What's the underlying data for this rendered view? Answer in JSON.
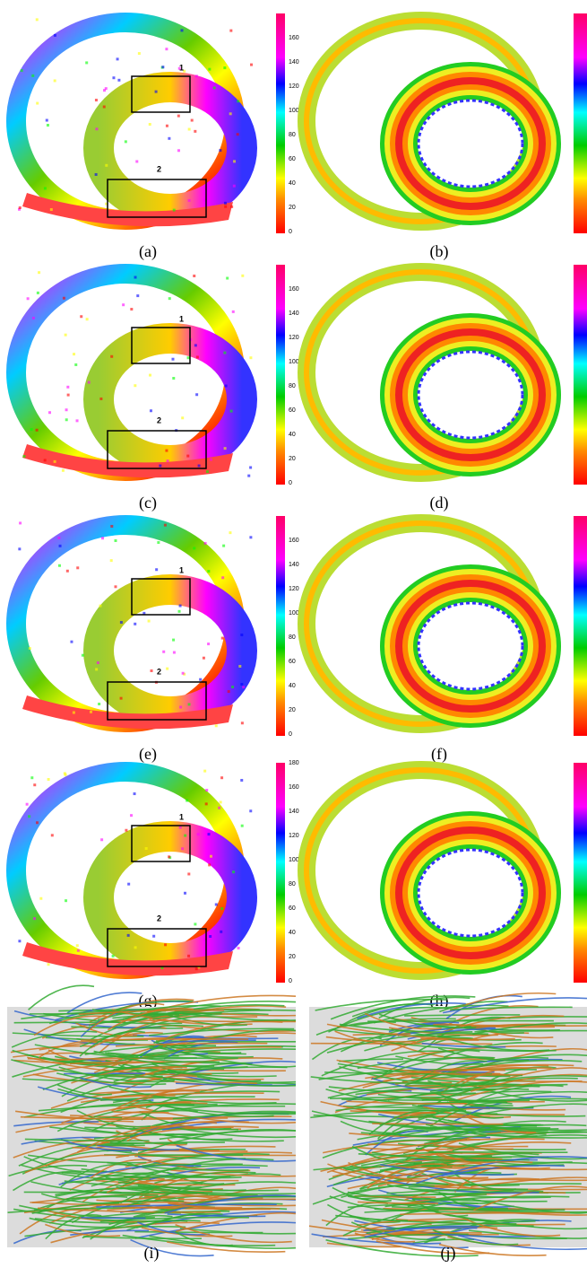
{
  "panels": [
    {
      "label": "(a)",
      "colorbar_ticks": [
        0,
        20,
        40,
        60,
        80,
        100,
        120,
        140,
        160
      ],
      "boxes": [
        "1",
        "2"
      ]
    },
    {
      "label": "(b)"
    },
    {
      "label": "(c)",
      "colorbar_ticks": [
        0,
        20,
        40,
        60,
        80,
        100,
        120,
        140,
        160
      ],
      "boxes": [
        "1",
        "2"
      ]
    },
    {
      "label": "(d)"
    },
    {
      "label": "(e)",
      "colorbar_ticks": [
        0,
        20,
        40,
        60,
        80,
        100,
        120,
        140,
        160
      ],
      "boxes": [
        "1",
        "2"
      ]
    },
    {
      "label": "(f)"
    },
    {
      "label": "(g)",
      "colorbar_ticks": [
        0,
        20,
        40,
        60,
        80,
        100,
        120,
        140,
        160,
        180
      ],
      "boxes": [
        "1",
        "2"
      ]
    },
    {
      "label": "(h)"
    },
    {
      "label": "(i)"
    },
    {
      "label": "(j)"
    }
  ]
}
